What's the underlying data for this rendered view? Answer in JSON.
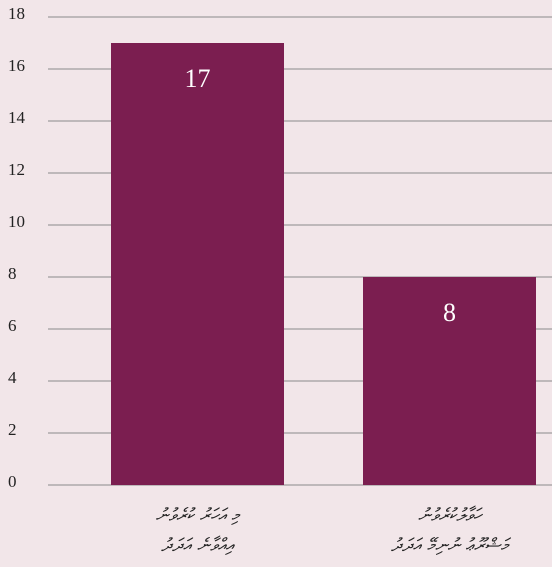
{
  "chart_data": {
    "type": "bar",
    "categories": [
      [
        "މި އަހަރު ކުރެވުނު",
        "އިއްވާނެ އަދަދު"
      ],
      [
        "ހަވާލުކުރެވުނު",
        "މަޝްރޫޢު ނުނިމޭ އަދަދު"
      ]
    ],
    "values": [
      17,
      8
    ],
    "color": "#7b1e50",
    "ylim": [
      0,
      18
    ],
    "yticks": [
      0,
      2,
      4,
      6,
      8,
      10,
      12,
      14,
      16,
      18
    ],
    "grid": true
  }
}
